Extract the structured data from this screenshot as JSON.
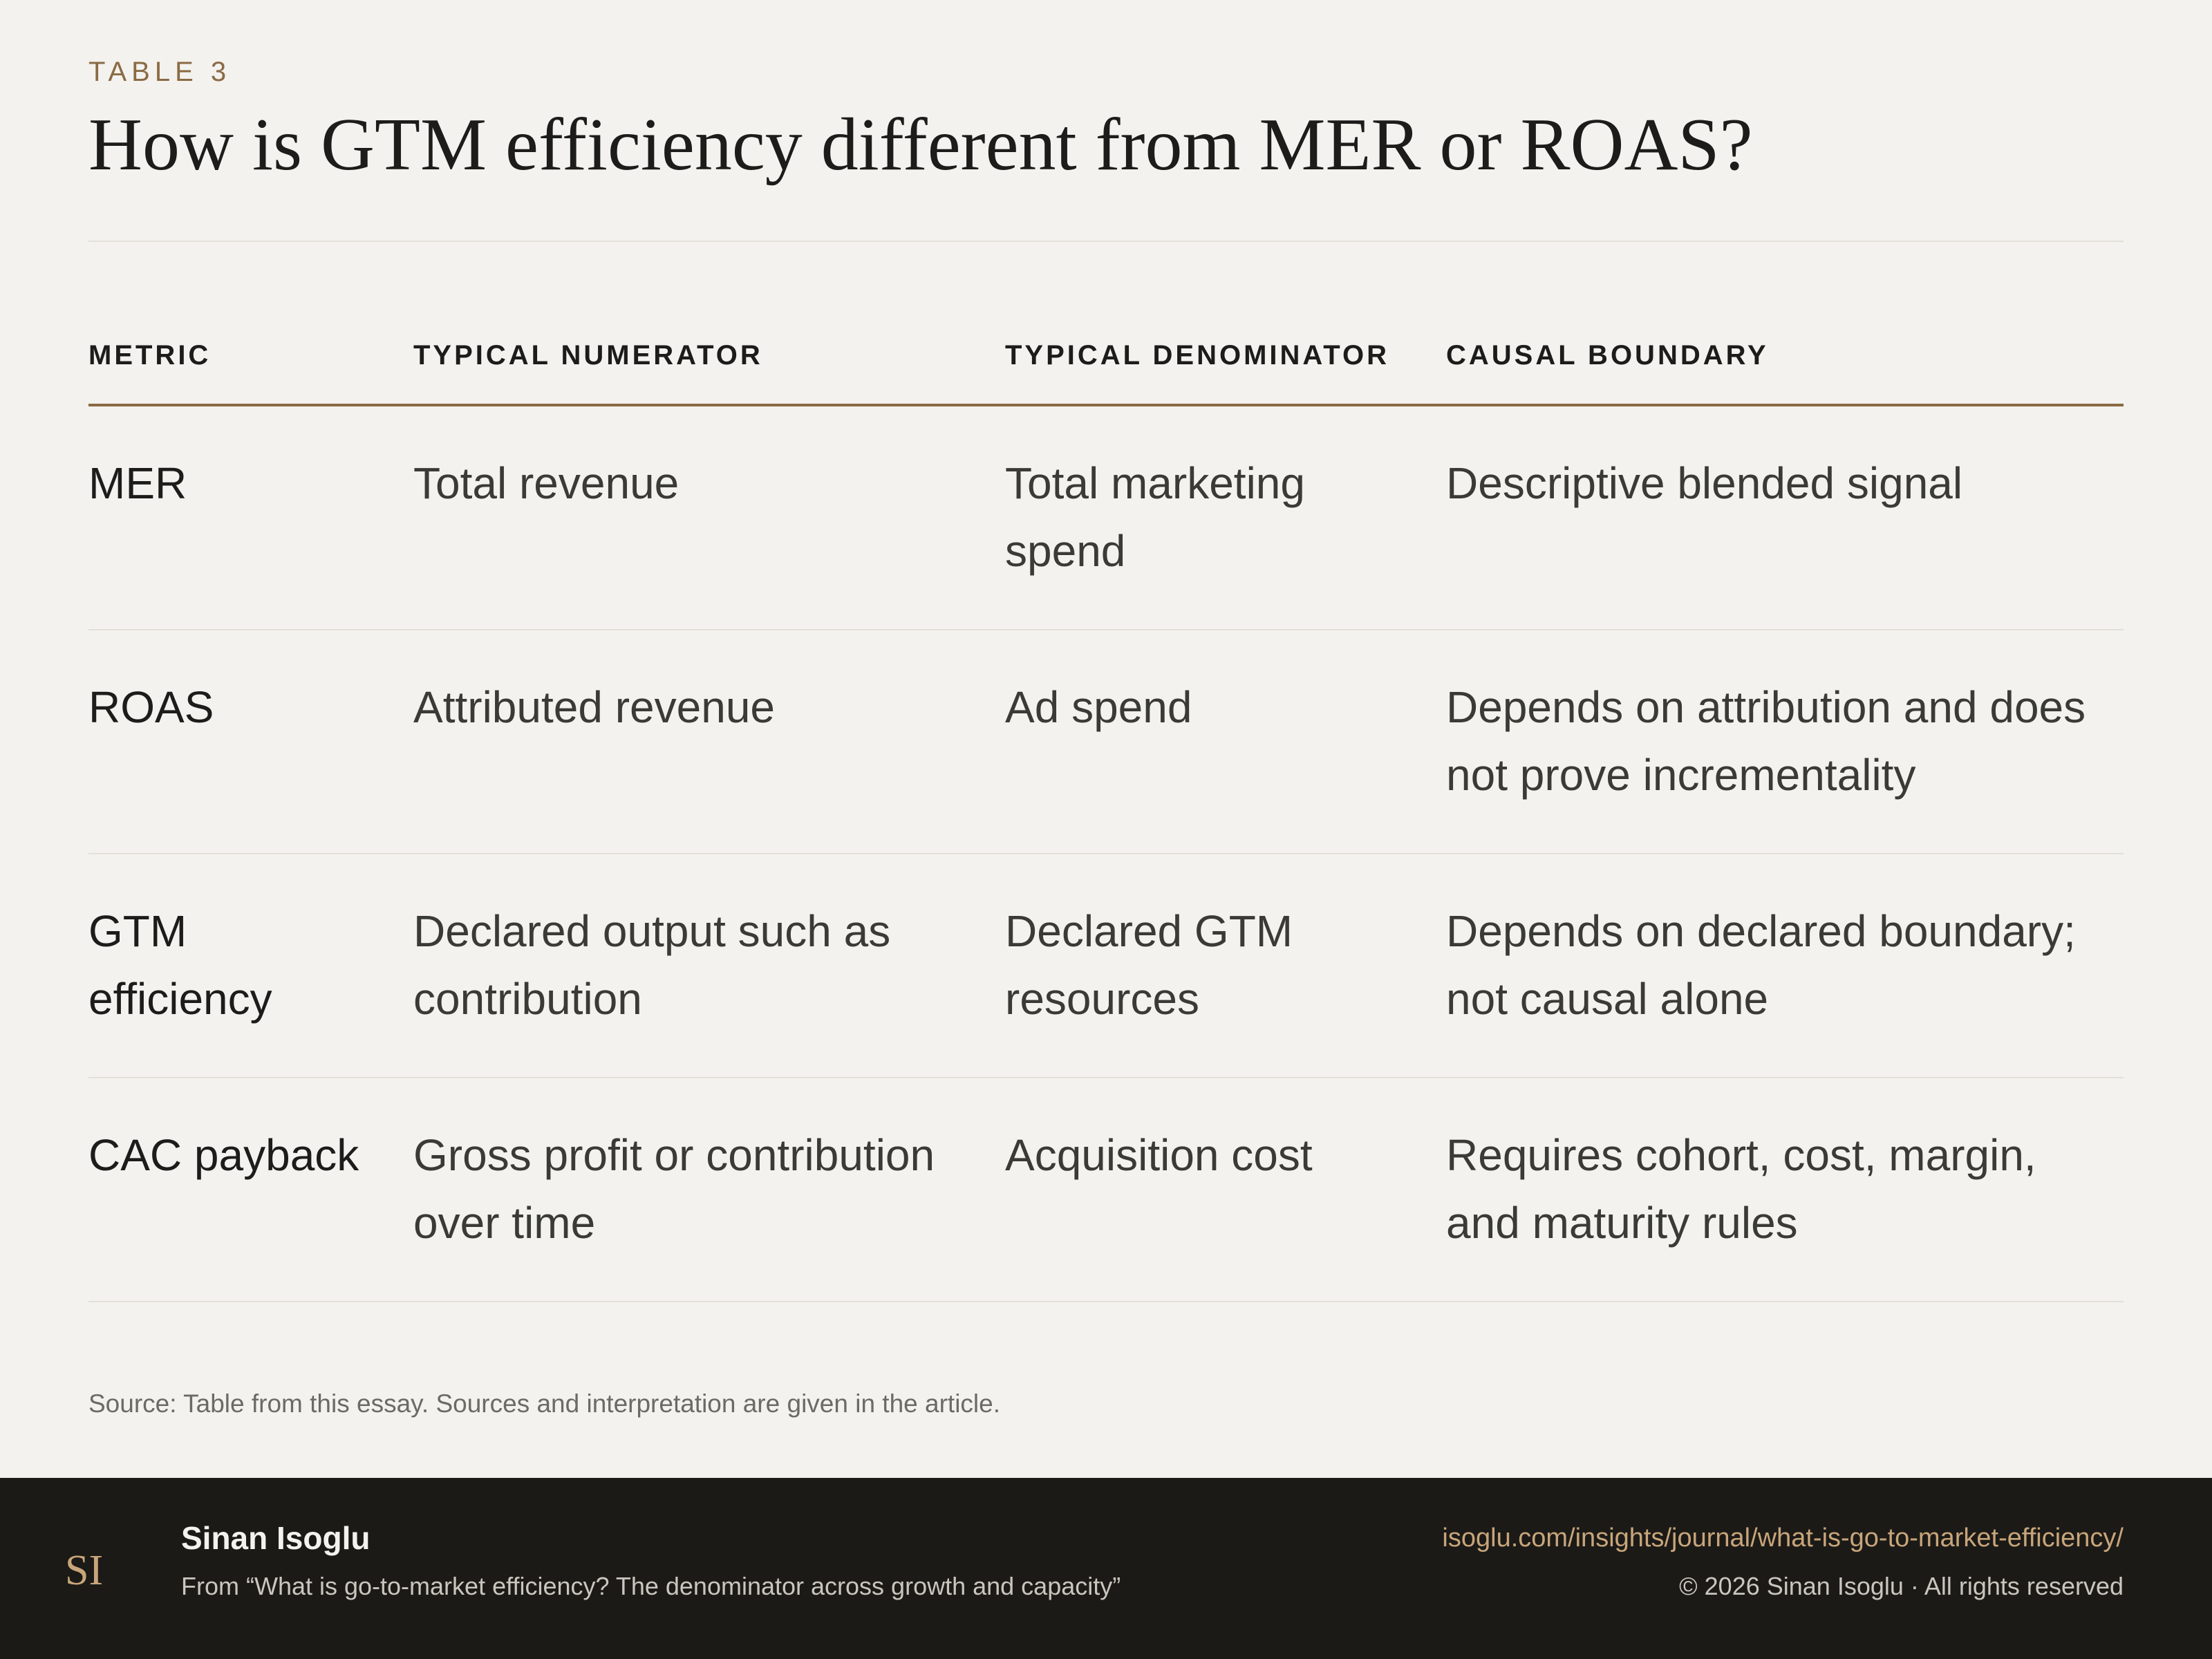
{
  "header": {
    "eyebrow": "TABLE 3",
    "title": "How is GTM efficiency different from MER or ROAS?"
  },
  "table": {
    "columns": [
      "METRIC",
      "TYPICAL NUMERATOR",
      "TYPICAL DENOMINATOR",
      "CAUSAL BOUNDARY"
    ],
    "rows": [
      [
        "MER",
        "Total revenue",
        "Total marketing spend",
        "Descriptive blended signal"
      ],
      [
        "ROAS",
        "Attributed revenue",
        "Ad spend",
        "Depends on attribution and does not prove incrementality"
      ],
      [
        "GTM efficiency",
        "Declared output such as contribution",
        "Declared GTM resources",
        "Depends on declared boundary; not causal alone"
      ],
      [
        "CAC payback",
        "Gross profit or contribution over time",
        "Acquisition cost",
        "Requires cohort, cost, margin, and maturity rules"
      ]
    ]
  },
  "source_note": "Source: Table from this essay. Sources and interpretation are given in the article.",
  "footer": {
    "logo_text": "SI",
    "author": "Sinan Isoglu",
    "from": "From “What is go-to-market efficiency? The denominator across growth and capacity”",
    "url": "isoglu.com/insights/journal/what-is-go-to-market-efficiency/",
    "copyright": "© 2026 Sinan Isoglu · All rights reserved"
  },
  "colors": {
    "background": "#f3f2ee",
    "accent": "#8a6a44",
    "footer_background": "#1b1a17",
    "link": "#c8a57a"
  }
}
